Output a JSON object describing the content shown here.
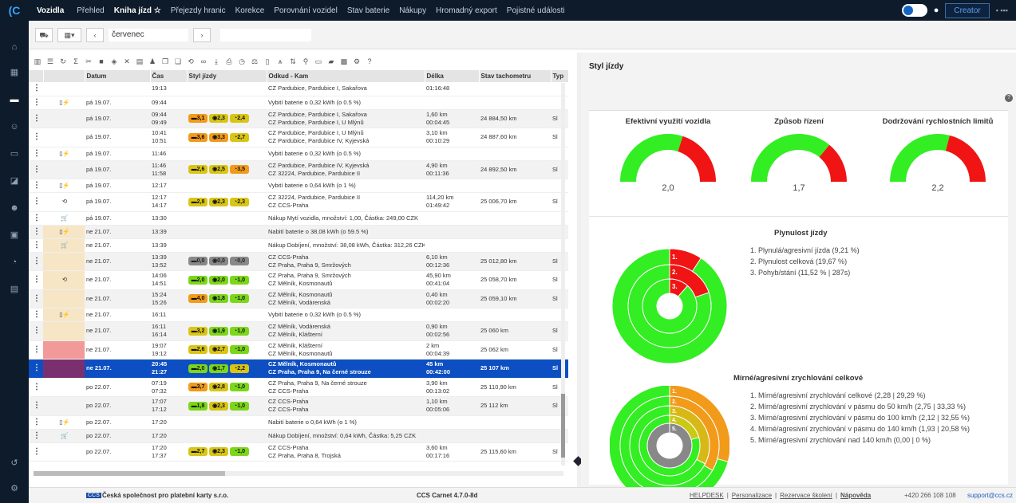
{
  "topbar": {
    "brand": "Vozidla",
    "items": [
      "Přehled",
      "Kniha jízd ☆",
      "Přejezdy hranic",
      "Korekce",
      "Porovnání vozidel",
      "Stav baterie",
      "Nákupy",
      "Hromadný export",
      "Pojistné události"
    ],
    "active_index": 1,
    "creator_label": "Creator"
  },
  "toolbar": {
    "month": "červenec"
  },
  "table": {
    "headers": [
      "",
      "",
      "Datum",
      "Čas",
      "Styl jízdy",
      "Odkud - Kam",
      "Délka",
      "Stav tachometru",
      "Typ"
    ],
    "rows": [
      {
        "kind": "single",
        "icon": "",
        "date": "",
        "time": "19:13",
        "badges": [],
        "route": "CZ Pardubice, Pardubice I, Sakařova",
        "len": "01:16:48",
        "odo": "",
        "typ": "",
        "alt": false,
        "partial": true
      },
      {
        "kind": "single",
        "icon": "charge",
        "date": "pá 19.07.",
        "time": "09:44",
        "badges": [],
        "route": "Vybití baterie o 0,32 kWh (o 0.5 %)",
        "len": "",
        "odo": "",
        "typ": "",
        "alt": false
      },
      {
        "kind": "double",
        "icon": "",
        "date": "pá 19.07.",
        "time": "09:44|09:49",
        "badges": [
          [
            "o",
            "3,1"
          ],
          [
            "y",
            "2,3"
          ],
          [
            "y",
            "2,4"
          ]
        ],
        "route": "CZ Pardubice, Pardubice I, Sakařova|CZ Pardubice, Pardubice I, U Mlýnů",
        "len": "1,60 km|00:04:45",
        "odo": "24 884,50 km",
        "typ": "Sl",
        "alt": true
      },
      {
        "kind": "double",
        "icon": "",
        "date": "pá 19.07.",
        "time": "10:41|10:51",
        "badges": [
          [
            "o",
            "3,6"
          ],
          [
            "o",
            "3,3"
          ],
          [
            "y",
            "2,7"
          ]
        ],
        "route": "CZ Pardubice, Pardubice I, U Mlýnů|CZ Pardubice, Pardubice IV, Kyjevská",
        "len": "3,10 km|00:10:29",
        "odo": "24 887,60 km",
        "typ": "Sl",
        "alt": false
      },
      {
        "kind": "single",
        "icon": "charge",
        "date": "pá 19.07.",
        "time": "11:46",
        "badges": [],
        "route": "Vybití baterie o 0,32 kWh (o 0.5 %)",
        "len": "",
        "odo": "",
        "typ": "",
        "alt": false
      },
      {
        "kind": "double",
        "icon": "",
        "date": "pá 19.07.",
        "time": "11:46|11:58",
        "badges": [
          [
            "y",
            "2,6"
          ],
          [
            "y",
            "2,5"
          ],
          [
            "o",
            "3,5"
          ]
        ],
        "route": "CZ Pardubice, Pardubice IV, Kyjevská|CZ 32224, Pardubice, Pardubice II",
        "len": "4,90 km|00:11:36",
        "odo": "24 892,50 km",
        "typ": "Sl",
        "alt": true
      },
      {
        "kind": "single",
        "icon": "charge",
        "date": "pá 19.07.",
        "time": "12:17",
        "badges": [],
        "route": "Vybití baterie o 0,64 kWh (o 1 %)",
        "len": "",
        "odo": "",
        "typ": "",
        "alt": false
      },
      {
        "kind": "double",
        "icon": "route",
        "date": "pá 19.07.",
        "time": "12:17|14:17",
        "badges": [
          [
            "y",
            "2,8"
          ],
          [
            "y",
            "2,3"
          ],
          [
            "y",
            "2,3"
          ]
        ],
        "route": "CZ 32224, Pardubice, Pardubice II|CZ CCS-Praha",
        "len": "114,20 km|01:49:42",
        "odo": "25 006,70 km",
        "typ": "Sl",
        "alt": false
      },
      {
        "kind": "single",
        "icon": "cart",
        "date": "pá 19.07.",
        "time": "13:30",
        "badges": [],
        "route": "Nákup Mytí vozidla, množství: 1,00, Částka: 249,00 CZK",
        "len": "",
        "odo": "",
        "typ": "",
        "alt": false
      },
      {
        "kind": "single",
        "icon": "charge",
        "date": "ne 21.07.",
        "time": "13:39",
        "badges": [],
        "route": "Nabití baterie o 38,08 kWh (o 59.5 %)",
        "len": "",
        "odo": "",
        "typ": "",
        "alt": true,
        "mark": "tan"
      },
      {
        "kind": "single",
        "icon": "cart",
        "date": "ne 21.07.",
        "time": "13:39",
        "badges": [],
        "route": "Nákup Dobíjení, množství: 38,08 kWh, Částka: 312,26 CZK",
        "len": "",
        "odo": "",
        "typ": "",
        "alt": false,
        "mark": "tan"
      },
      {
        "kind": "double",
        "icon": "",
        "date": "ne 21.07.",
        "time": "13:39|13:52",
        "badges": [
          [
            "g",
            "0,0"
          ],
          [
            "g",
            "0,0"
          ],
          [
            "g",
            "0,0"
          ]
        ],
        "route": "CZ CCS-Praha|CZ Praha, Praha 9, Smržových",
        "len": "6,10 km|00:12:36",
        "odo": "25 012,80 km",
        "typ": "Sl",
        "alt": true,
        "mark": "tan"
      },
      {
        "kind": "double",
        "icon": "route",
        "date": "ne 21.07.",
        "time": "14:06|14:51",
        "badges": [
          [
            "gr",
            "2,0"
          ],
          [
            "gr",
            "2,0"
          ],
          [
            "gr",
            "1,0"
          ]
        ],
        "route": "CZ Praha, Praha 9, Smržových|CZ Mělník, Kosmonautů",
        "len": "45,90 km|00:41:04",
        "odo": "25 058,70 km",
        "typ": "Sl",
        "alt": false,
        "mark": "tan"
      },
      {
        "kind": "double",
        "icon": "",
        "date": "ne 21.07.",
        "time": "15:24|15:26",
        "badges": [
          [
            "o",
            "4,0"
          ],
          [
            "gr",
            "1,8"
          ],
          [
            "gr",
            "1,0"
          ]
        ],
        "route": "CZ Mělník, Kosmonautů|CZ Mělník, Vodárenská",
        "len": "0,40 km|00:02:20",
        "odo": "25 059,10 km",
        "typ": "Sl",
        "alt": true,
        "mark": "tan"
      },
      {
        "kind": "single",
        "icon": "charge",
        "date": "ne 21.07.",
        "time": "16:11",
        "badges": [],
        "route": "Vybití baterie o 0,32 kWh (o 0.5 %)",
        "len": "",
        "odo": "",
        "typ": "",
        "alt": false,
        "mark": "tan"
      },
      {
        "kind": "double",
        "icon": "",
        "date": "ne 21.07.",
        "time": "16:11|16:14",
        "badges": [
          [
            "y",
            "3,2"
          ],
          [
            "gr",
            "1,9"
          ],
          [
            "gr",
            "1,0"
          ]
        ],
        "route": "CZ Mělník, Vodárenská|CZ Mělník, Klášterní",
        "len": "0,90 km|00:02:56",
        "odo": "25 060 km",
        "typ": "Sl",
        "alt": true,
        "mark": "tan"
      },
      {
        "kind": "double",
        "icon": "",
        "date": "ne 21.07.",
        "time": "19:07|19:12",
        "badges": [
          [
            "y",
            "2,6"
          ],
          [
            "y",
            "2,7"
          ],
          [
            "gr",
            "1,0"
          ]
        ],
        "route": "CZ Mělník, Klášterní|CZ Mělník, Kosmonautů",
        "len": "2 km|00:04:39",
        "odo": "25 062 km",
        "typ": "Sl",
        "alt": false,
        "mark": "pink"
      },
      {
        "kind": "double",
        "icon": "",
        "date": "ne 21.07.",
        "time": "20:45|21:27",
        "badges": [
          [
            "gr",
            "2,0"
          ],
          [
            "gr",
            "1,7"
          ],
          [
            "y",
            "2,2"
          ]
        ],
        "route": "CZ Mělník, Kosmonautů|CZ Praha, Praha 9, Na černé strouze",
        "len": "45 km|00:42:00",
        "odo": "25 107 km",
        "typ": "Sl",
        "sel": true,
        "mark": "purple"
      },
      {
        "kind": "double",
        "icon": "",
        "date": "po 22.07.",
        "time": "07:19|07:32",
        "badges": [
          [
            "o",
            "3,7"
          ],
          [
            "y",
            "2,8"
          ],
          [
            "gr",
            "1,0"
          ]
        ],
        "route": "CZ Praha, Praha 9, Na černé strouze|CZ CCS-Praha",
        "len": "3,90 km|00:13:02",
        "odo": "25 110,90 km",
        "typ": "Sl",
        "alt": false
      },
      {
        "kind": "double",
        "icon": "",
        "date": "po 22.07.",
        "time": "17:07|17:12",
        "badges": [
          [
            "gr",
            "1,8"
          ],
          [
            "y",
            "2,3"
          ],
          [
            "gr",
            "1,0"
          ]
        ],
        "route": "CZ CCS-Praha|CZ CCS-Praha",
        "len": "1,10 km|00:05:06",
        "odo": "25 112 km",
        "typ": "Sl",
        "alt": true
      },
      {
        "kind": "single",
        "icon": "charge",
        "date": "po 22.07.",
        "time": "17:20",
        "badges": [],
        "route": "Nabití baterie o 0,64 kWh (o 1 %)",
        "len": "",
        "odo": "",
        "typ": "",
        "alt": false
      },
      {
        "kind": "single",
        "icon": "cart",
        "date": "po 22.07.",
        "time": "17:20",
        "badges": [],
        "route": "Nákup Dobíjení, množství: 0,64 kWh, Částka: 5,25 CZK",
        "len": "",
        "odo": "",
        "typ": "",
        "alt": true
      },
      {
        "kind": "double",
        "icon": "",
        "date": "po 22.07.",
        "time": "17:20|17:37",
        "badges": [
          [
            "y",
            "2,7"
          ],
          [
            "y",
            "2,3"
          ],
          [
            "gr",
            "1,0"
          ]
        ],
        "route": "CZ CCS-Praha|CZ Praha, Praha 8, Trojská",
        "len": "3,60 km|00:17:16",
        "odo": "25 115,60 km",
        "typ": "Sl",
        "alt": false
      }
    ]
  },
  "right": {
    "title": "Styl jízdy",
    "gauges": [
      {
        "label": "Efektivní využití vozidla",
        "value": "2,0",
        "fraction": 0.6
      },
      {
        "label": "Způsob řízení",
        "value": "1,7",
        "fraction": 0.72
      },
      {
        "label": "Dodržování rychlostních limitů",
        "value": "2,2",
        "fraction": 0.58
      }
    ],
    "smooth_title": "Plynulost jízdy",
    "smooth_items": [
      "1. Plynulá/agresivní jízda (9,21 %)",
      "2. Plynulost celková (19,67 %)",
      "3. Pohyb/stání (11,52 % | 287s)"
    ],
    "smooth_fractions": [
      0.092,
      0.197,
      0.115
    ],
    "accel_title": "Mírné/agresivní zrychlování celkové",
    "accel_items": [
      "1. Mírné/agresivní zrychlování celkové (2,28 | 29,29 %)",
      "2. Mírné/agresivní zrychlování v pásmu do 50 km/h (2,75 | 33,33 %)",
      "3. Mírné/agresivní zrychlování v pásmu do 100 km/h (2,12 | 32,55 %)",
      "4. Mírné/agresivní zrychlování v pásmu do 140 km/h (1,93 | 20,58 %)",
      "5. Mírné/agresivní zrychlování nad 140 km/h (0,00 | 0 %)"
    ]
  },
  "status": {
    "company": "Česká společnost pro platební karty s.r.o.",
    "ccs": "CCS",
    "version": "CCS Carnet 4.7.0-8d",
    "links": [
      "HELPDESK",
      "Personalizace",
      "Rezervace školení",
      "Nápověda"
    ],
    "phone": "+420 266 108 108",
    "mail": "support@ccs.cz"
  },
  "colors": {
    "green": "#33ee22",
    "red": "#f01414",
    "orange": "#f29a1a",
    "olive": "#c9c916",
    "nav": "#0d1b2a",
    "selected": "#0d4fc2"
  }
}
